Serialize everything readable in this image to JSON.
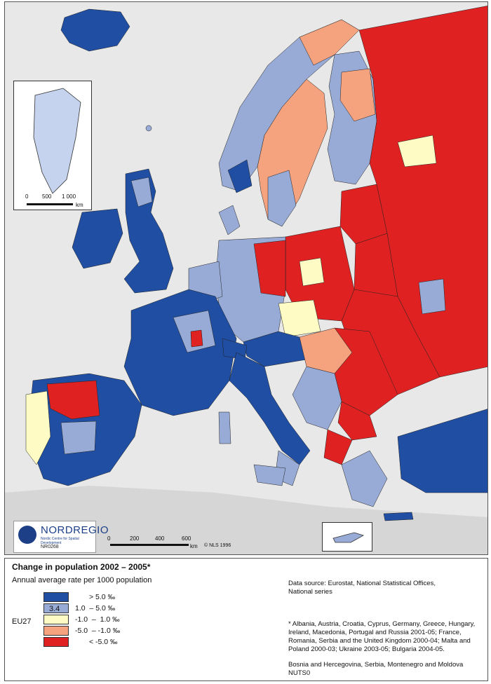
{
  "colors": {
    "high": "#1f4ea3",
    "mid_high": "#98abd6",
    "stable": "#fefcc4",
    "mid_low": "#f5a27e",
    "low": "#e02121",
    "background": "#e8e8e8"
  },
  "map": {
    "greenland_scale": {
      "ticks": [
        "0",
        "500",
        "1 000"
      ],
      "unit": "km"
    },
    "main_scale": {
      "ticks": [
        "0",
        "200",
        "400",
        "600"
      ],
      "unit": "km"
    },
    "copyright": "© NLS 1996"
  },
  "logo": {
    "name": "NORDREGIO",
    "tagline": "Nordic Centre for Spatial Development",
    "code": "NR0268"
  },
  "legend": {
    "title": "Change in population 2002 – 2005*",
    "subtitle": "Annual average rate per 1000 population",
    "eu27_label": "EU27",
    "eu27_value": "3.4",
    "classes": [
      {
        "label": "> 5.0 ‰",
        "color_key": "high"
      },
      {
        "label": "1.0  – 5.0 ‰",
        "color_key": "mid_high"
      },
      {
        "label": "-1.0  –  1.0 ‰",
        "color_key": "stable"
      },
      {
        "label": "-5.0  – -1.0 ‰",
        "color_key": "mid_low"
      },
      {
        "label": "< -5.0 ‰",
        "color_key": "low"
      }
    ],
    "data_source": [
      "Data source: Eurostat, National Statistical Offices,",
      "National series"
    ],
    "footnote": [
      "* Albania, Austria, Croatia, Cyprus, Germany, Greece, Hungary,",
      "Ireland, Macedonia, Portugal and Russia 2001-05; France,",
      "Romania, Serbia and the United Kingdom 2000-04; Malta and",
      "Poland 2000-03; Ukraine 2003-05; Bulgaria 2004-05."
    ],
    "nuts_note": [
      "Bosnia and Hercegovina, Serbia, Montenegro and Moldova",
      "NUTS0"
    ]
  }
}
